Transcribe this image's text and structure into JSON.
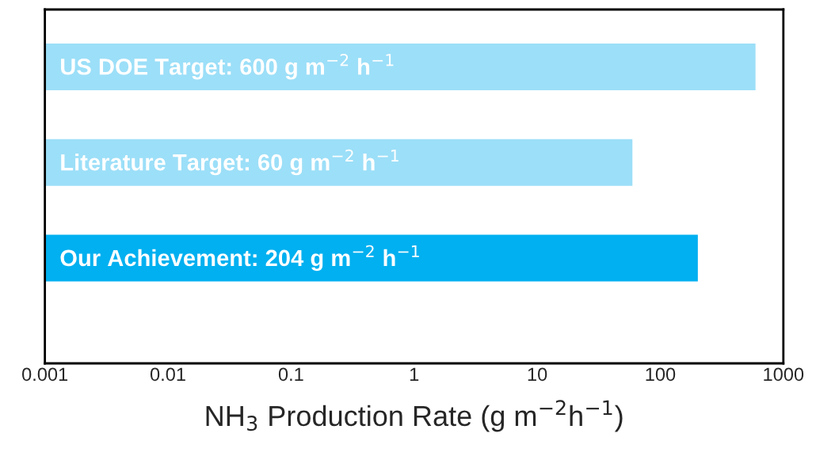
{
  "chart_data": {
    "type": "bar",
    "orientation": "horizontal",
    "log": "x",
    "categories": [
      "US DOE Target: 600 g m$^{−2}$ h$^{−1}$",
      "Literature Target: 60 g m$^{−2}$ h$^{−1}$",
      "Our Achievement: 204 g m$^{−2}$ h$^{−1}$"
    ],
    "values": [
      600,
      60,
      204
    ],
    "colors": [
      "#9cdff8",
      "#9cdff8",
      "#00b0f0"
    ],
    "xlabel": "NH$_{3}$ Production Rate (g m$^{−2}$h$^{−1}$)",
    "xlim": [
      0.001,
      1000
    ],
    "xticks": [
      0.001,
      0.01,
      0.1,
      1,
      10,
      100,
      1000
    ],
    "tick_labels": "x",
    "grid": false,
    "legend": false
  }
}
